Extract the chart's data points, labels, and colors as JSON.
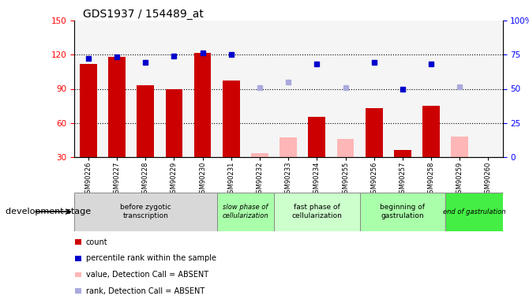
{
  "title": "GDS1937 / 154489_at",
  "samples": [
    "GSM90226",
    "GSM90227",
    "GSM90228",
    "GSM90229",
    "GSM90230",
    "GSM90231",
    "GSM90232",
    "GSM90233",
    "GSM90234",
    "GSM90255",
    "GSM90256",
    "GSM90257",
    "GSM90258",
    "GSM90259",
    "GSM90260"
  ],
  "bar_values": [
    112,
    118,
    93,
    90,
    122,
    97,
    null,
    null,
    65,
    null,
    73,
    36,
    75,
    null,
    30
  ],
  "bar_absent": [
    null,
    null,
    null,
    null,
    null,
    null,
    33,
    47,
    null,
    46,
    null,
    null,
    null,
    48,
    null
  ],
  "rank_values": [
    117,
    118,
    113,
    119,
    122,
    120,
    null,
    null,
    112,
    null,
    113,
    90,
    112,
    null,
    null
  ],
  "rank_absent": [
    null,
    null,
    null,
    null,
    null,
    null,
    91,
    96,
    null,
    91,
    null,
    null,
    null,
    92,
    null
  ],
  "ylim_left": [
    30,
    150
  ],
  "ylim_right": [
    0,
    100
  ],
  "y_ticks_left": [
    30,
    60,
    90,
    120,
    150
  ],
  "y_ticks_right": [
    0,
    25,
    50,
    75,
    100
  ],
  "bar_color": "#CC0000",
  "bar_absent_color": "#FFB6B6",
  "rank_color": "#0000CC",
  "rank_absent_color": "#AAAADD",
  "stages": [
    {
      "label": "before zygotic\ntranscription",
      "start": 0,
      "end": 4,
      "color": "#D8D8D8"
    },
    {
      "label": "slow phase of\ncellularization",
      "start": 5,
      "end": 6,
      "color": "#AAFFAA"
    },
    {
      "label": "fast phase of\ncellularization",
      "start": 7,
      "end": 9,
      "color": "#CCFFCC"
    },
    {
      "label": "beginning of\ngastrulation",
      "start": 10,
      "end": 12,
      "color": "#AAFFAA"
    },
    {
      "label": "end of gastrulation",
      "start": 13,
      "end": 14,
      "color": "#44EE44"
    }
  ],
  "dev_stage_label": "development stage",
  "legend_items": [
    {
      "label": "count",
      "color": "#CC0000"
    },
    {
      "label": "percentile rank within the sample",
      "color": "#0000CC"
    },
    {
      "label": "value, Detection Call = ABSENT",
      "color": "#FFB6B6"
    },
    {
      "label": "rank, Detection Call = ABSENT",
      "color": "#AAAADD"
    }
  ]
}
